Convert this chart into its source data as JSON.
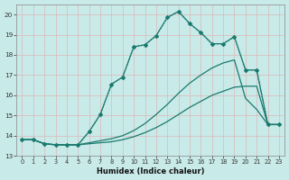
{
  "xlabel": "Humidex (Indice chaleur)",
  "bg_color": "#c8eae8",
  "grid_color": "#dbb8b8",
  "line_color": "#1a7a6e",
  "xlim_min": -0.5,
  "xlim_max": 23.5,
  "ylim_min": 13.0,
  "ylim_max": 20.5,
  "xticks": [
    0,
    1,
    2,
    3,
    4,
    5,
    6,
    7,
    8,
    9,
    10,
    11,
    12,
    13,
    14,
    15,
    16,
    17,
    18,
    19,
    20,
    21,
    22,
    23
  ],
  "yticks": [
    13,
    14,
    15,
    16,
    17,
    18,
    19,
    20
  ],
  "line1_x": [
    0,
    1,
    2,
    3,
    4,
    5,
    6,
    7,
    8,
    9,
    10,
    11,
    12,
    13,
    14,
    15,
    16,
    17,
    18,
    19,
    20,
    21,
    22,
    23
  ],
  "line1_y": [
    13.8,
    13.8,
    13.6,
    13.55,
    13.55,
    13.55,
    13.6,
    13.65,
    13.7,
    13.8,
    13.95,
    14.15,
    14.4,
    14.7,
    15.05,
    15.4,
    15.7,
    16.0,
    16.2,
    16.4,
    16.45,
    16.45,
    14.55,
    14.55
  ],
  "line2_x": [
    0,
    1,
    2,
    3,
    4,
    5,
    6,
    7,
    8,
    9,
    10,
    11,
    12,
    13,
    14,
    15,
    16,
    17,
    18,
    19,
    20,
    21,
    22,
    23
  ],
  "line2_y": [
    13.8,
    13.8,
    13.6,
    13.55,
    13.55,
    13.55,
    13.65,
    13.75,
    13.85,
    14.0,
    14.25,
    14.6,
    15.05,
    15.55,
    16.1,
    16.6,
    17.0,
    17.35,
    17.6,
    17.75,
    15.85,
    15.3,
    14.55,
    14.55
  ],
  "line3_x": [
    0,
    1,
    2,
    3,
    4,
    5,
    6,
    7,
    8,
    9,
    10,
    11,
    12,
    13,
    14,
    15,
    16,
    17,
    18,
    19,
    20,
    21,
    22,
    23
  ],
  "line3_y": [
    13.8,
    13.8,
    13.6,
    13.55,
    13.55,
    13.55,
    14.2,
    15.05,
    16.55,
    16.9,
    18.4,
    18.5,
    18.95,
    19.85,
    20.15,
    19.55,
    19.1,
    18.55,
    18.55,
    18.9,
    17.25,
    17.25,
    14.55,
    14.55
  ],
  "line4_x": [
    0,
    1,
    2,
    3,
    4,
    5,
    6,
    7,
    8,
    9,
    10,
    11,
    12,
    13,
    14,
    15,
    16,
    17,
    18,
    19,
    20,
    21,
    22,
    23
  ],
  "line4_y": [
    13.8,
    13.8,
    13.6,
    13.55,
    13.55,
    13.55,
    14.2,
    15.05,
    16.55,
    16.9,
    18.4,
    18.5,
    18.95,
    19.85,
    20.15,
    19.55,
    19.1,
    18.55,
    18.55,
    18.9,
    17.25,
    17.25,
    14.55,
    14.55
  ]
}
